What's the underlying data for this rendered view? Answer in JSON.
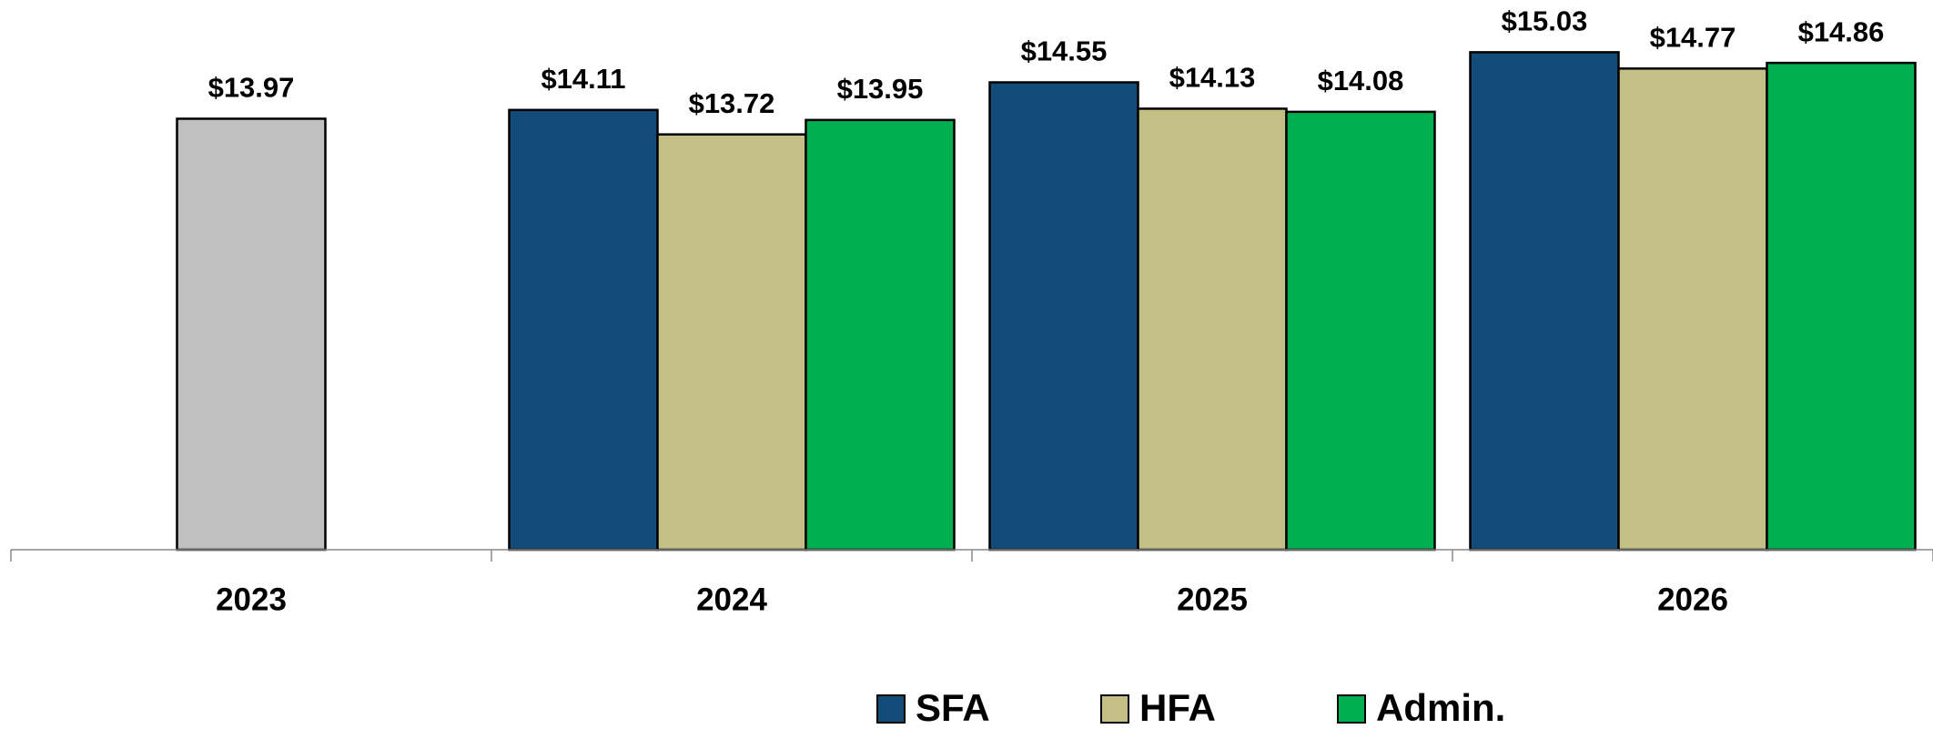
{
  "chart_data": {
    "type": "bar",
    "categories": [
      "2023",
      "2024",
      "2025",
      "2026"
    ],
    "series": [
      {
        "color": "#c0c0c0",
        "values": [
          13.97,
          null,
          null,
          null
        ],
        "value_labels": [
          "$13.97",
          null,
          null,
          null
        ]
      },
      {
        "name": "SFA",
        "color": "#124c78",
        "values": [
          null,
          14.11,
          14.55,
          15.03
        ],
        "value_labels": [
          null,
          "$14.11",
          "$14.55",
          "$15.03"
        ]
      },
      {
        "name": "HFA",
        "color": "#c4bf85",
        "values": [
          null,
          13.72,
          14.13,
          14.77
        ],
        "value_labels": [
          null,
          "$13.72",
          "$14.13",
          "$14.77"
        ]
      },
      {
        "name": "Admin.",
        "color": "#00af50",
        "values": [
          null,
          13.95,
          14.08,
          14.86
        ],
        "value_labels": [
          null,
          "$13.95",
          "$14.08",
          "$14.86"
        ]
      }
    ],
    "ylim": [
      7.1,
      15.5
    ],
    "grid": false
  }
}
